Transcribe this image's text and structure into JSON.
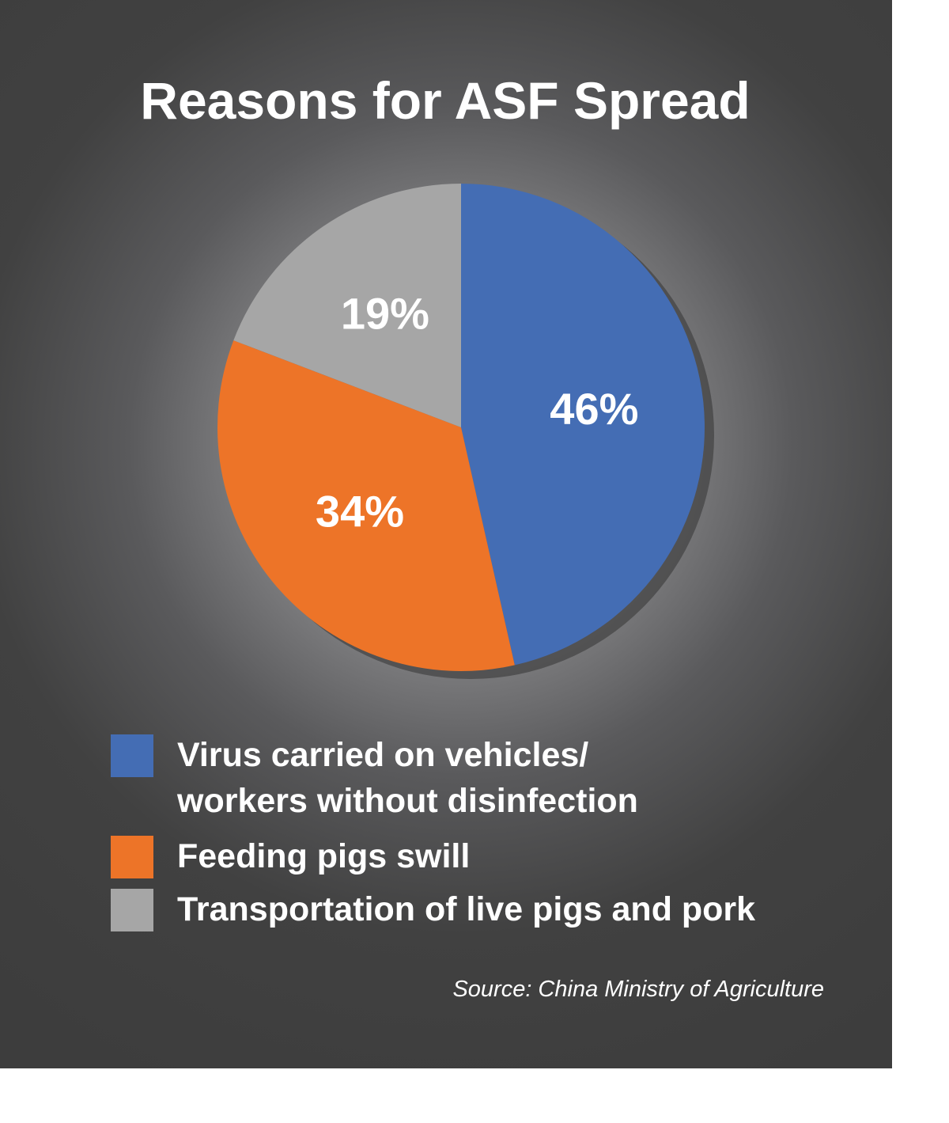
{
  "chart_data": {
    "type": "pie",
    "title": "Reasons for ASF Spread",
    "categories": [
      "Virus carried on vehicles/\nworkers without disinfection",
      "Feeding pigs swill",
      "Transportation of live pigs and pork"
    ],
    "values": [
      46,
      34,
      19
    ],
    "value_labels": [
      "46%",
      "34%",
      "19%"
    ],
    "colors": [
      "#446db4",
      "#ed7428",
      "#a6a6a6"
    ],
    "source": "Source: China Ministry of Agriculture"
  }
}
